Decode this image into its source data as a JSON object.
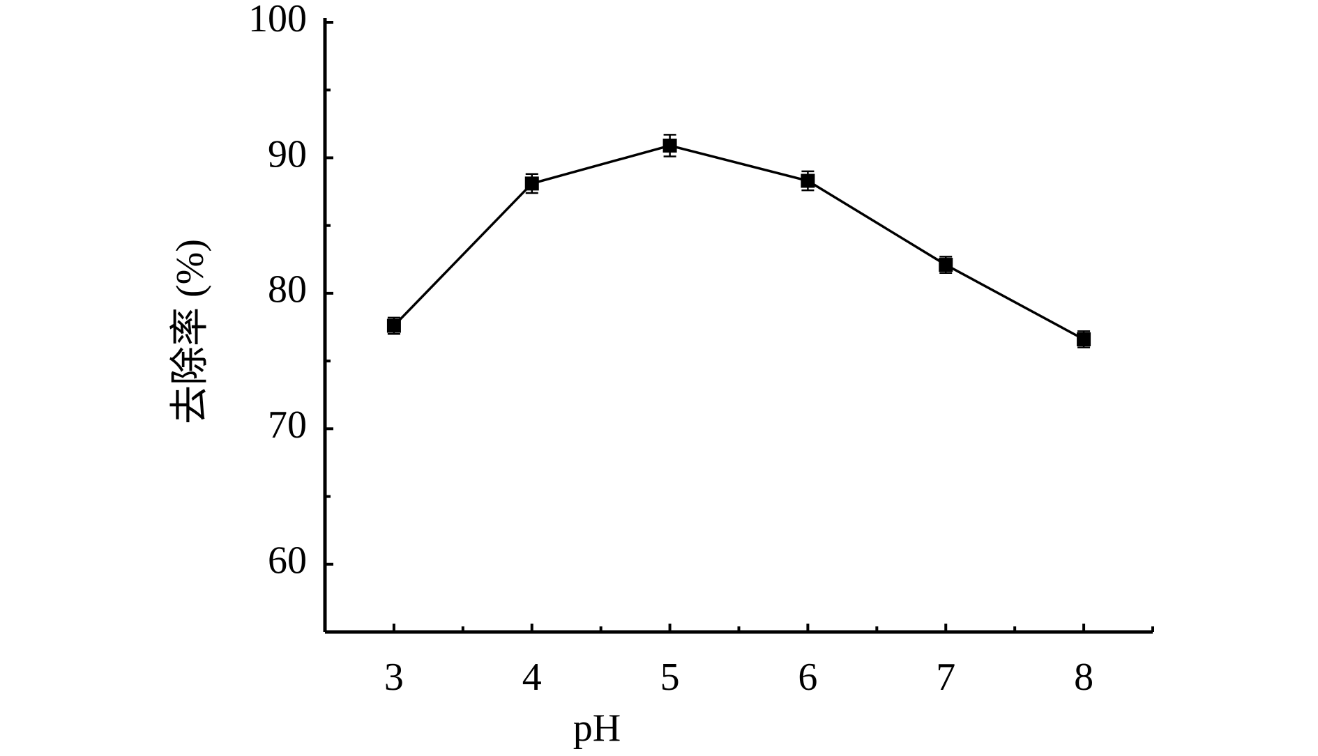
{
  "chart_data": {
    "type": "line",
    "xlabel": "pH",
    "ylabel": "去除率 (%)",
    "x": [
      3,
      4,
      5,
      6,
      7,
      8
    ],
    "series": [
      {
        "color": "#000000",
        "values": [
          77.6,
          88.1,
          90.9,
          88.3,
          82.1,
          76.6
        ],
        "errors": [
          0.6,
          0.7,
          0.8,
          0.7,
          0.6,
          0.6
        ]
      }
    ],
    "xlim": [
      2.5,
      8.5
    ],
    "xticks": [
      3,
      4,
      5,
      6,
      7,
      8
    ],
    "x_minor_ticks": [
      3.5,
      4.5,
      5.5,
      6.5,
      7.5,
      8.5
    ],
    "ylim": [
      55,
      100
    ],
    "yticks": [
      60,
      70,
      80,
      90,
      100
    ],
    "y_minor_ticks": [
      65,
      75,
      85,
      95
    ],
    "grid": false
  }
}
